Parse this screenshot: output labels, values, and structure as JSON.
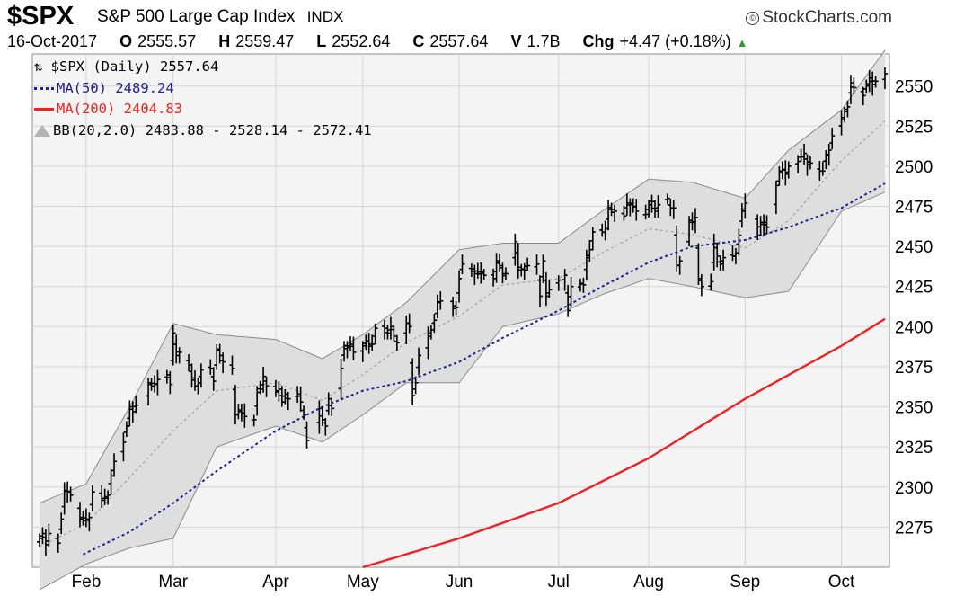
{
  "header": {
    "symbol": "$SPX",
    "name": "S&P 500 Large Cap Index",
    "exchange": "INDX",
    "brand": "StockCharts.com",
    "brand_mark": "©",
    "date": "16-Oct-2017",
    "open_label": "O",
    "open": "2555.57",
    "high_label": "H",
    "high": "2559.47",
    "low_label": "L",
    "low": "2552.64",
    "close_label": "C",
    "close": "2557.64",
    "volume_label": "V",
    "volume": "1.7B",
    "change_label": "Chg",
    "change": "+4.47 (+0.18%)",
    "change_icon": "up-triangle-icon"
  },
  "legend": {
    "price": "$SPX (Daily) 2557.64",
    "price_icon": "ohlc-bars-icon",
    "ma50": "MA(50) 2489.24",
    "ma200": "MA(200) 2404.83",
    "bb": "BB(20,2.0) 2483.88 - 2528.14 - 2572.41"
  },
  "colors": {
    "bars": "#000000",
    "ma50": "#1f1f8f",
    "ma200": "#ee2222",
    "bb_fill": "#dedede",
    "bb_edge": "#8a8a8a",
    "grid": "#d4d4d4",
    "change_up": "#2ca02c"
  },
  "chart_data": {
    "type": "ohlc",
    "title": "$SPX S&P 500 Large Cap Index",
    "x_tick_labels": [
      "Feb",
      "Mar",
      "Apr",
      "May",
      "Jun",
      "Jul",
      "Aug",
      "Sep",
      "Oct"
    ],
    "y_ticks": [
      2275,
      2300,
      2325,
      2350,
      2375,
      2400,
      2425,
      2450,
      2475,
      2500,
      2525,
      2550
    ],
    "ylim": [
      2250,
      2570
    ],
    "grid": true,
    "y_axis_side": "right",
    "legend_position": "top-left",
    "month_starts": [
      "2017-02-01",
      "2017-03-01",
      "2017-04-03",
      "2017-05-01",
      "2017-06-01",
      "2017-07-03",
      "2017-08-01",
      "2017-09-01",
      "2017-10-02"
    ],
    "closes": [
      [
        "2017-01-17",
        2268
      ],
      [
        "2017-01-18",
        2271
      ],
      [
        "2017-01-19",
        2264
      ],
      [
        "2017-01-20",
        2271
      ],
      [
        "2017-01-23",
        2265
      ],
      [
        "2017-01-24",
        2280
      ],
      [
        "2017-01-25",
        2298
      ],
      [
        "2017-01-26",
        2297
      ],
      [
        "2017-01-27",
        2295
      ],
      [
        "2017-01-30",
        2281
      ],
      [
        "2017-01-31",
        2279
      ],
      [
        "2017-02-01",
        2280
      ],
      [
        "2017-02-02",
        2281
      ],
      [
        "2017-02-03",
        2297
      ],
      [
        "2017-02-06",
        2293
      ],
      [
        "2017-02-07",
        2293
      ],
      [
        "2017-02-08",
        2295
      ],
      [
        "2017-02-09",
        2307
      ],
      [
        "2017-02-10",
        2316
      ],
      [
        "2017-02-13",
        2328
      ],
      [
        "2017-02-14",
        2338
      ],
      [
        "2017-02-15",
        2350
      ],
      [
        "2017-02-16",
        2347
      ],
      [
        "2017-02-17",
        2351
      ],
      [
        "2017-02-21",
        2365
      ],
      [
        "2017-02-22",
        2363
      ],
      [
        "2017-02-23",
        2364
      ],
      [
        "2017-02-24",
        2367
      ],
      [
        "2017-02-27",
        2370
      ],
      [
        "2017-02-28",
        2364
      ],
      [
        "2017-03-01",
        2396
      ],
      [
        "2017-03-02",
        2382
      ],
      [
        "2017-03-03",
        2384
      ],
      [
        "2017-03-06",
        2376
      ],
      [
        "2017-03-07",
        2368
      ],
      [
        "2017-03-08",
        2363
      ],
      [
        "2017-03-09",
        2365
      ],
      [
        "2017-03-10",
        2373
      ],
      [
        "2017-03-13",
        2374
      ],
      [
        "2017-03-14",
        2366
      ],
      [
        "2017-03-15",
        2386
      ],
      [
        "2017-03-16",
        2382
      ],
      [
        "2017-03-17",
        2378
      ],
      [
        "2017-03-20",
        2374
      ],
      [
        "2017-03-21",
        2345
      ],
      [
        "2017-03-22",
        2348
      ],
      [
        "2017-03-23",
        2346
      ],
      [
        "2017-03-24",
        2344
      ],
      [
        "2017-03-27",
        2342
      ],
      [
        "2017-03-28",
        2359
      ],
      [
        "2017-03-29",
        2361
      ],
      [
        "2017-03-30",
        2369
      ],
      [
        "2017-03-31",
        2363
      ],
      [
        "2017-04-03",
        2360
      ],
      [
        "2017-04-04",
        2361
      ],
      [
        "2017-04-05",
        2353
      ],
      [
        "2017-04-06",
        2358
      ],
      [
        "2017-04-07",
        2355
      ],
      [
        "2017-04-10",
        2358
      ],
      [
        "2017-04-11",
        2353
      ],
      [
        "2017-04-12",
        2345
      ],
      [
        "2017-04-13",
        2329
      ],
      [
        "2017-04-17",
        2349
      ],
      [
        "2017-04-18",
        2342
      ],
      [
        "2017-04-19",
        2338
      ],
      [
        "2017-04-20",
        2355
      ],
      [
        "2017-04-21",
        2349
      ],
      [
        "2017-04-24",
        2374
      ],
      [
        "2017-04-25",
        2388
      ],
      [
        "2017-04-26",
        2387
      ],
      [
        "2017-04-27",
        2389
      ],
      [
        "2017-04-28",
        2384
      ],
      [
        "2017-05-01",
        2388
      ],
      [
        "2017-05-02",
        2391
      ],
      [
        "2017-05-03",
        2389
      ],
      [
        "2017-05-04",
        2389
      ],
      [
        "2017-05-05",
        2399
      ],
      [
        "2017-05-08",
        2399
      ],
      [
        "2017-05-09",
        2396
      ],
      [
        "2017-05-10",
        2400
      ],
      [
        "2017-05-11",
        2394
      ],
      [
        "2017-05-12",
        2390
      ],
      [
        "2017-05-15",
        2402
      ],
      [
        "2017-05-16",
        2400
      ],
      [
        "2017-05-17",
        2357
      ],
      [
        "2017-05-18",
        2365
      ],
      [
        "2017-05-19",
        2382
      ],
      [
        "2017-05-22",
        2394
      ],
      [
        "2017-05-23",
        2398
      ],
      [
        "2017-05-24",
        2404
      ],
      [
        "2017-05-25",
        2415
      ],
      [
        "2017-05-26",
        2416
      ],
      [
        "2017-05-30",
        2413
      ],
      [
        "2017-05-31",
        2412
      ],
      [
        "2017-06-01",
        2430
      ],
      [
        "2017-06-02",
        2439
      ],
      [
        "2017-06-05",
        2436
      ],
      [
        "2017-06-06",
        2433
      ],
      [
        "2017-06-07",
        2434
      ],
      [
        "2017-06-08",
        2434
      ],
      [
        "2017-06-09",
        2432
      ],
      [
        "2017-06-12",
        2430
      ],
      [
        "2017-06-13",
        2441
      ],
      [
        "2017-06-14",
        2438
      ],
      [
        "2017-06-15",
        2433
      ],
      [
        "2017-06-16",
        2433
      ],
      [
        "2017-06-19",
        2453
      ],
      [
        "2017-06-20",
        2437
      ],
      [
        "2017-06-21",
        2436
      ],
      [
        "2017-06-22",
        2435
      ],
      [
        "2017-06-23",
        2438
      ],
      [
        "2017-06-26",
        2439
      ],
      [
        "2017-06-27",
        2419
      ],
      [
        "2017-06-28",
        2441
      ],
      [
        "2017-06-29",
        2419
      ],
      [
        "2017-06-30",
        2423
      ],
      [
        "2017-07-03",
        2429
      ],
      [
        "2017-07-05",
        2432
      ],
      [
        "2017-07-06",
        2410
      ],
      [
        "2017-07-07",
        2425
      ],
      [
        "2017-07-10",
        2427
      ],
      [
        "2017-07-11",
        2426
      ],
      [
        "2017-07-12",
        2443
      ],
      [
        "2017-07-13",
        2448
      ],
      [
        "2017-07-14",
        2459
      ],
      [
        "2017-07-17",
        2459
      ],
      [
        "2017-07-18",
        2461
      ],
      [
        "2017-07-19",
        2473
      ],
      [
        "2017-07-20",
        2473
      ],
      [
        "2017-07-21",
        2472
      ],
      [
        "2017-07-24",
        2469
      ],
      [
        "2017-07-25",
        2477
      ],
      [
        "2017-07-26",
        2477
      ],
      [
        "2017-07-27",
        2475
      ],
      [
        "2017-07-28",
        2472
      ],
      [
        "2017-07-31",
        2470
      ],
      [
        "2017-08-01",
        2476
      ],
      [
        "2017-08-02",
        2478
      ],
      [
        "2017-08-03",
        2472
      ],
      [
        "2017-08-04",
        2476
      ],
      [
        "2017-08-07",
        2480
      ],
      [
        "2017-08-08",
        2474
      ],
      [
        "2017-08-09",
        2474
      ],
      [
        "2017-08-10",
        2438
      ],
      [
        "2017-08-11",
        2441
      ],
      [
        "2017-08-14",
        2465
      ],
      [
        "2017-08-15",
        2465
      ],
      [
        "2017-08-16",
        2468
      ],
      [
        "2017-08-17",
        2430
      ],
      [
        "2017-08-18",
        2425
      ],
      [
        "2017-08-21",
        2428
      ],
      [
        "2017-08-22",
        2452
      ],
      [
        "2017-08-23",
        2444
      ],
      [
        "2017-08-24",
        2439
      ],
      [
        "2017-08-25",
        2443
      ],
      [
        "2017-08-28",
        2444
      ],
      [
        "2017-08-29",
        2446
      ],
      [
        "2017-08-30",
        2457
      ],
      [
        "2017-08-31",
        2472
      ],
      [
        "2017-09-01",
        2477
      ],
      [
        "2017-09-05",
        2457
      ],
      [
        "2017-09-06",
        2465
      ],
      [
        "2017-09-07",
        2465
      ],
      [
        "2017-09-08",
        2462
      ],
      [
        "2017-09-11",
        2488
      ],
      [
        "2017-09-12",
        2496
      ],
      [
        "2017-09-13",
        2498
      ],
      [
        "2017-09-14",
        2495
      ],
      [
        "2017-09-15",
        2500
      ],
      [
        "2017-09-18",
        2503
      ],
      [
        "2017-09-19",
        2506
      ],
      [
        "2017-09-20",
        2508
      ],
      [
        "2017-09-21",
        2501
      ],
      [
        "2017-09-22",
        2502
      ],
      [
        "2017-09-25",
        2497
      ],
      [
        "2017-09-26",
        2497
      ],
      [
        "2017-09-27",
        2507
      ],
      [
        "2017-09-28",
        2510
      ],
      [
        "2017-09-29",
        2519
      ],
      [
        "2017-10-02",
        2529
      ],
      [
        "2017-10-03",
        2534
      ],
      [
        "2017-10-04",
        2537
      ],
      [
        "2017-10-05",
        2552
      ],
      [
        "2017-10-06",
        2549
      ],
      [
        "2017-10-09",
        2544
      ],
      [
        "2017-10-10",
        2550
      ],
      [
        "2017-10-11",
        2555
      ],
      [
        "2017-10-12",
        2551
      ],
      [
        "2017-10-13",
        2553
      ],
      [
        "2017-10-16",
        2557.64
      ]
    ],
    "ma50_anchors": [
      [
        "2017-01-31",
        2258
      ],
      [
        "2017-02-15",
        2272
      ],
      [
        "2017-03-01",
        2290
      ],
      [
        "2017-03-15",
        2310
      ],
      [
        "2017-04-03",
        2335
      ],
      [
        "2017-04-18",
        2350
      ],
      [
        "2017-05-01",
        2360
      ],
      [
        "2017-05-15",
        2366
      ],
      [
        "2017-06-01",
        2378
      ],
      [
        "2017-06-15",
        2393
      ],
      [
        "2017-07-03",
        2410
      ],
      [
        "2017-07-17",
        2425
      ],
      [
        "2017-08-01",
        2440
      ],
      [
        "2017-08-15",
        2450
      ],
      [
        "2017-09-01",
        2454
      ],
      [
        "2017-09-15",
        2462
      ],
      [
        "2017-10-02",
        2474
      ],
      [
        "2017-10-16",
        2489.24
      ]
    ],
    "ma200_anchors": [
      [
        "2017-05-01",
        2250
      ],
      [
        "2017-06-01",
        2268
      ],
      [
        "2017-07-03",
        2290
      ],
      [
        "2017-08-01",
        2318
      ],
      [
        "2017-09-01",
        2355
      ],
      [
        "2017-10-02",
        2388
      ],
      [
        "2017-10-16",
        2404.83
      ]
    ],
    "bb_anchors": [
      [
        "2017-01-17",
        2236,
        2290
      ],
      [
        "2017-02-01",
        2252,
        2302
      ],
      [
        "2017-02-15",
        2262,
        2350
      ],
      [
        "2017-03-01",
        2268,
        2402
      ],
      [
        "2017-03-15",
        2325,
        2395
      ],
      [
        "2017-04-03",
        2338,
        2392
      ],
      [
        "2017-04-18",
        2328,
        2380
      ],
      [
        "2017-05-01",
        2345,
        2395
      ],
      [
        "2017-05-15",
        2365,
        2415
      ],
      [
        "2017-06-01",
        2365,
        2448
      ],
      [
        "2017-06-15",
        2400,
        2452
      ],
      [
        "2017-07-03",
        2408,
        2452
      ],
      [
        "2017-07-17",
        2420,
        2472
      ],
      [
        "2017-08-01",
        2430,
        2492
      ],
      [
        "2017-08-15",
        2425,
        2490
      ],
      [
        "2017-09-01",
        2418,
        2480
      ],
      [
        "2017-09-15",
        2422,
        2510
      ],
      [
        "2017-10-02",
        2472,
        2535
      ],
      [
        "2017-10-16",
        2483.88,
        2572.41
      ]
    ]
  }
}
